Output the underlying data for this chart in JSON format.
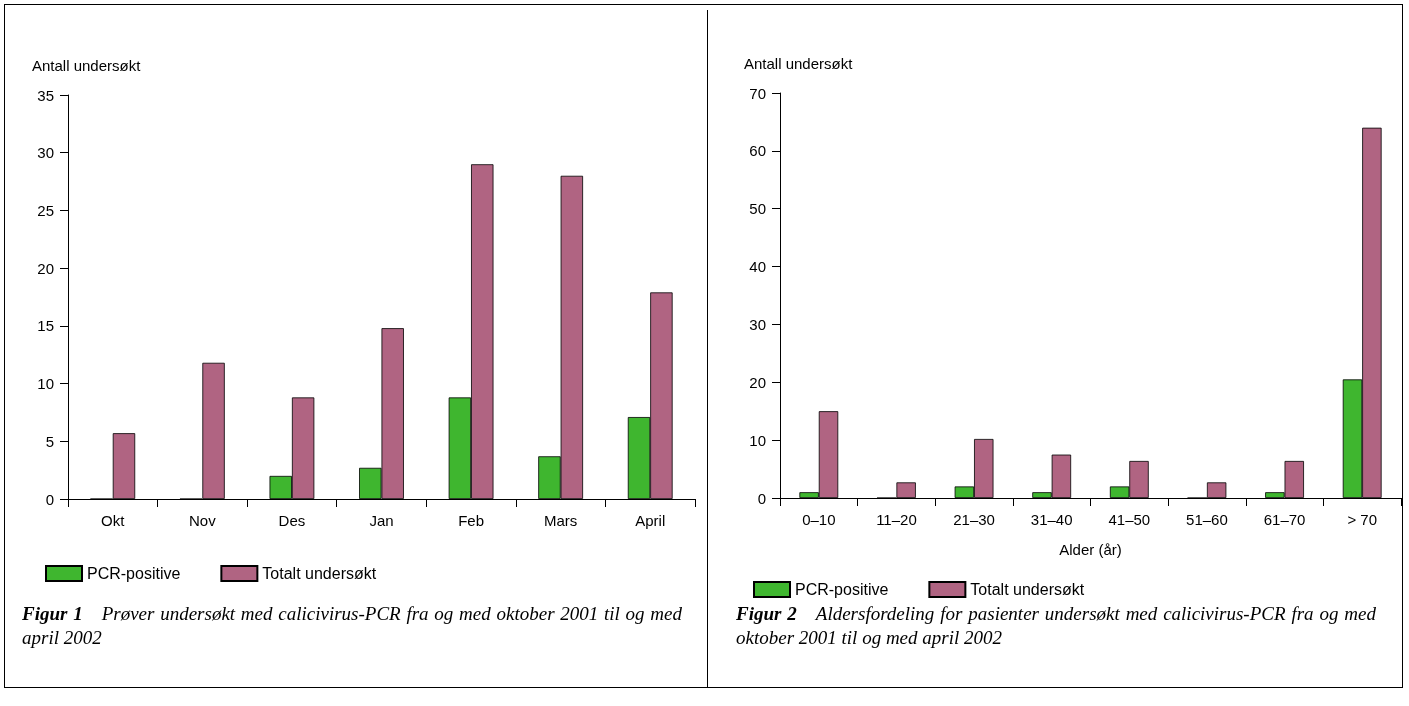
{
  "chart_data": [
    {
      "type": "bar",
      "ylabel": "Antall undersøkt",
      "categories": [
        "Okt",
        "Nov",
        "Des",
        "Jan",
        "Feb",
        "Mars",
        "April"
      ],
      "series": [
        {
          "name": "PCR-positive",
          "color": "#3fb62f",
          "values": [
            0,
            0,
            2,
            2.7,
            8.8,
            3.7,
            7.1
          ]
        },
        {
          "name": "Totalt undersøkt",
          "color": "#b06482",
          "values": [
            5.7,
            11.8,
            8.8,
            14.8,
            29,
            28,
            17.9
          ]
        }
      ],
      "ylim": [
        0,
        35
      ],
      "yticks": [
        0,
        5,
        10,
        15,
        20,
        25,
        30,
        35
      ],
      "grid": false,
      "legend": "bottom",
      "annotations": [
        "Figur 1 Prøver undersøkt med calicivirus-PCR fra og med oktober 2001 til og med april 2002"
      ]
    },
    {
      "type": "bar",
      "ylabel": "Antall undersøkt",
      "xlabel": "Alder (år)",
      "categories": [
        "0–10",
        "11–20",
        "21–30",
        "31–40",
        "41–50",
        "51–60",
        "61–70",
        "> 70"
      ],
      "series": [
        {
          "name": "PCR-positive",
          "color": "#3fb62f",
          "values": [
            1,
            0,
            2,
            1,
            2,
            0,
            1,
            20.5
          ]
        },
        {
          "name": "Totalt undersøkt",
          "color": "#b06482",
          "values": [
            15,
            2.7,
            10.2,
            7.5,
            6.4,
            2.7,
            6.4,
            64
          ]
        }
      ],
      "ylim": [
        0,
        70
      ],
      "yticks": [
        0,
        10,
        20,
        30,
        40,
        50,
        60,
        70
      ],
      "grid": false,
      "legend": "bottom",
      "annotations": [
        "Figur 2 Aldersfordeling for pasienter undersøkt med calicivirus-PCR fra og med oktober 2001 til og med april 2002"
      ]
    }
  ]
}
